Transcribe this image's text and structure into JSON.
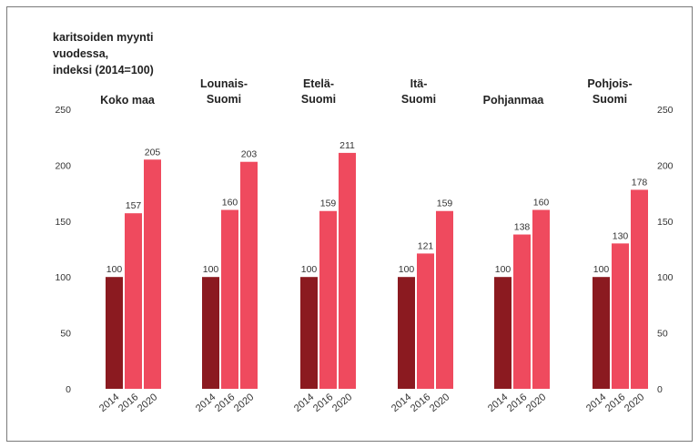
{
  "chart_data": {
    "type": "bar",
    "title": [
      "karitsoiden  myynti",
      "vuodessa,",
      "indeksi  (2014=100)"
    ],
    "ylim": [
      0,
      250
    ],
    "yticks": [
      0,
      50,
      100,
      150,
      200,
      250
    ],
    "categories": [
      "2014",
      "2016",
      "2020"
    ],
    "colors": {
      "2014": "#8b1a20",
      "2016": "#ef4a5e",
      "2020": "#ef4a5e"
    },
    "grid": false,
    "groups": [
      {
        "name": [
          "Koko maa"
        ],
        "values": [
          100,
          157,
          205
        ]
      },
      {
        "name": [
          "Lounais-",
          "Suomi"
        ],
        "values": [
          100,
          160,
          203
        ]
      },
      {
        "name": [
          "Etelä-",
          "Suomi"
        ],
        "values": [
          100,
          159,
          211
        ]
      },
      {
        "name": [
          "Itä-",
          "Suomi"
        ],
        "values": [
          100,
          121,
          159
        ]
      },
      {
        "name": [
          "Pohjanmaa"
        ],
        "values": [
          100,
          138,
          160
        ]
      },
      {
        "name": [
          "Pohjois-",
          "Suomi"
        ],
        "values": [
          100,
          130,
          178
        ]
      }
    ]
  }
}
